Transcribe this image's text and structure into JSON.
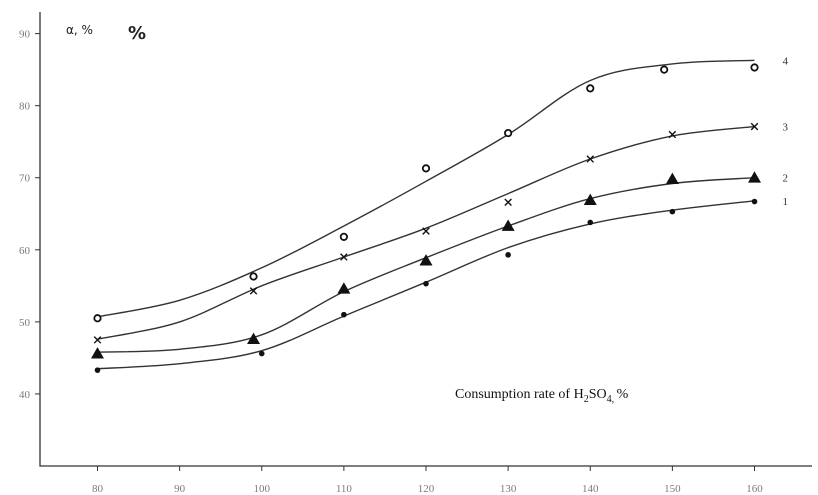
{
  "chart_data": {
    "type": "line",
    "ylabel_greek": "α, %",
    "ylabel_unit": "%",
    "annotation": {
      "prefix": "Consumption rate of H",
      "sub1": "2",
      "mid": "SO",
      "sub2": "4, ",
      "suffix": "%"
    },
    "xlim": [
      73,
      167
    ],
    "ylim": [
      30,
      93
    ],
    "x_ticks": [
      80,
      90,
      100,
      110,
      120,
      130,
      140,
      150,
      160
    ],
    "y_ticks": [
      40,
      50,
      60,
      70,
      80,
      90
    ],
    "series": [
      {
        "label": "1",
        "marker": "dot",
        "points": [
          [
            80,
            43.3
          ],
          [
            100,
            45.6
          ],
          [
            110,
            51.0
          ],
          [
            120,
            55.3
          ],
          [
            130,
            59.3
          ],
          [
            140,
            63.8
          ],
          [
            150,
            65.3
          ],
          [
            160,
            66.7
          ]
        ],
        "curve": [
          [
            80,
            43.5
          ],
          [
            90,
            44.2
          ],
          [
            100,
            46.0
          ],
          [
            110,
            50.8
          ],
          [
            120,
            55.5
          ],
          [
            130,
            60.3
          ],
          [
            140,
            63.6
          ],
          [
            150,
            65.5
          ],
          [
            160,
            66.8
          ]
        ]
      },
      {
        "label": "2",
        "marker": "triangle",
        "points": [
          [
            80,
            45.6
          ],
          [
            99,
            47.6
          ],
          [
            110,
            54.6
          ],
          [
            120,
            58.5
          ],
          [
            130,
            63.3
          ],
          [
            140,
            66.9
          ],
          [
            150,
            69.8
          ],
          [
            160,
            70.0
          ]
        ],
        "curve": [
          [
            80,
            45.8
          ],
          [
            90,
            46.2
          ],
          [
            100,
            48.2
          ],
          [
            110,
            54.2
          ],
          [
            120,
            58.9
          ],
          [
            130,
            63.3
          ],
          [
            140,
            67.1
          ],
          [
            150,
            69.2
          ],
          [
            160,
            70.0
          ]
        ]
      },
      {
        "label": "3",
        "marker": "cross",
        "points": [
          [
            80,
            47.5
          ],
          [
            99,
            54.3
          ],
          [
            110,
            59.0
          ],
          [
            120,
            62.6
          ],
          [
            130,
            66.6
          ],
          [
            140,
            72.6
          ],
          [
            150,
            76.0
          ],
          [
            160,
            77.1
          ]
        ],
        "curve": [
          [
            80,
            47.6
          ],
          [
            90,
            50.0
          ],
          [
            100,
            55.0
          ],
          [
            110,
            59.0
          ],
          [
            120,
            63.0
          ],
          [
            130,
            67.8
          ],
          [
            140,
            72.6
          ],
          [
            150,
            75.8
          ],
          [
            160,
            77.1
          ]
        ]
      },
      {
        "label": "4",
        "marker": "circle",
        "points": [
          [
            80,
            50.5
          ],
          [
            99,
            56.3
          ],
          [
            110,
            61.8
          ],
          [
            120,
            71.3
          ],
          [
            130,
            76.2
          ],
          [
            140,
            82.4
          ],
          [
            149,
            85.0
          ],
          [
            160,
            85.3
          ]
        ],
        "curve": [
          [
            80,
            50.7
          ],
          [
            90,
            53.0
          ],
          [
            100,
            57.5
          ],
          [
            110,
            63.3
          ],
          [
            120,
            69.5
          ],
          [
            130,
            76.0
          ],
          [
            140,
            83.5
          ],
          [
            150,
            85.8
          ],
          [
            160,
            86.3
          ]
        ]
      }
    ]
  }
}
